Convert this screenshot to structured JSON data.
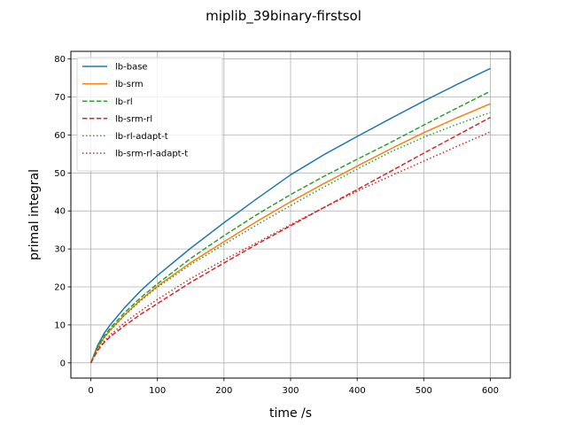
{
  "chart_data": {
    "type": "line",
    "title": "miplib_39binary-firstsol",
    "xlabel": "time /s",
    "ylabel": "primal integral",
    "xlim": [
      -30,
      630
    ],
    "ylim": [
      -4,
      82
    ],
    "xticks": [
      0,
      100,
      200,
      300,
      400,
      500,
      600
    ],
    "yticks": [
      0,
      10,
      20,
      30,
      40,
      50,
      60,
      70,
      80
    ],
    "grid": true,
    "legend_position": "upper-left",
    "x": [
      0,
      10,
      20,
      30,
      50,
      75,
      100,
      150,
      200,
      250,
      300,
      350,
      400,
      450,
      500,
      550,
      600
    ],
    "series": [
      {
        "name": "lb-base",
        "color": "#1f77b4",
        "linestyle": "solid",
        "values": [
          0,
          4.5,
          7.8,
          10.2,
          14.4,
          19.0,
          23.0,
          30.2,
          36.9,
          43.3,
          49.5,
          54.8,
          59.6,
          64.3,
          68.9,
          73.3,
          77.5
        ]
      },
      {
        "name": "lb-srm",
        "color": "#ff7f0e",
        "linestyle": "solid",
        "values": [
          0,
          3.8,
          6.7,
          8.8,
          12.5,
          16.6,
          20.2,
          26.4,
          31.9,
          37.3,
          42.4,
          47.2,
          51.8,
          56.3,
          60.6,
          64.5,
          68.2
        ]
      },
      {
        "name": "lb-rl",
        "color": "#2ca02c",
        "linestyle": "dashed",
        "values": [
          0,
          4.1,
          7.1,
          9.3,
          13.1,
          17.2,
          20.8,
          27.5,
          33.5,
          39.1,
          44.3,
          49.1,
          53.6,
          58.0,
          62.6,
          67.1,
          71.5
        ]
      },
      {
        "name": "lb-srm-rl",
        "color": "#d62728",
        "linestyle": "dashed",
        "values": [
          0,
          3.2,
          5.4,
          7.0,
          9.7,
          12.8,
          15.6,
          21.2,
          26.3,
          31.3,
          36.1,
          40.9,
          45.6,
          50.4,
          55.2,
          59.9,
          64.6
        ]
      },
      {
        "name": "lb-rl-adapt-t",
        "color": "#2ca02c",
        "linestyle": "dotted",
        "values": [
          0,
          3.8,
          6.6,
          8.7,
          12.4,
          16.4,
          19.9,
          25.9,
          31.2,
          36.4,
          41.4,
          46.3,
          51.0,
          55.5,
          59.4,
          62.8,
          65.9
        ]
      },
      {
        "name": "lb-srm-rl-adapt-t",
        "color": "#d62728",
        "linestyle": "dotted",
        "values": [
          0,
          3.3,
          5.7,
          7.5,
          10.5,
          13.7,
          16.7,
          22.2,
          27.1,
          31.7,
          36.4,
          40.9,
          45.2,
          49.2,
          53.1,
          57.0,
          60.8
        ]
      }
    ]
  }
}
